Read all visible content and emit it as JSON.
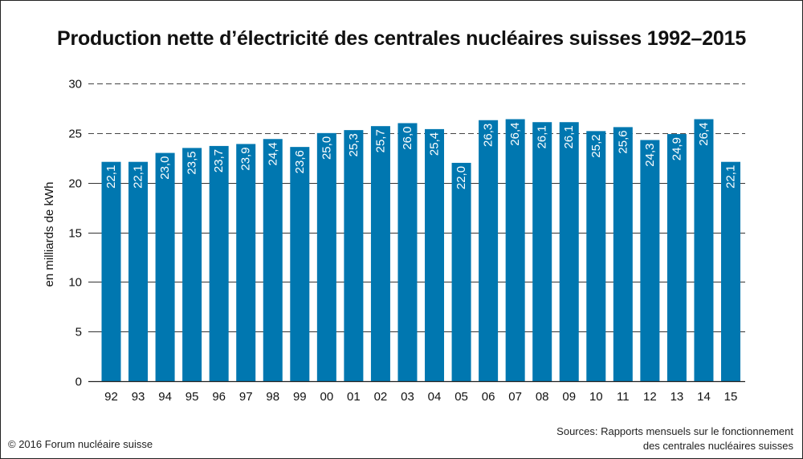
{
  "chart_data": {
    "type": "bar",
    "title": "Production nette d’électricité des centrales nucléaires suisses 1992–2015",
    "ylabel": "en milliards de kWh",
    "xlabel": "",
    "ylim": [
      0,
      30
    ],
    "yticks": [
      "0",
      "5",
      "10",
      "15",
      "20",
      "25",
      "30"
    ],
    "grid": "horizontal dashed at 25 and 30, solid at 5–20",
    "categories": [
      "92",
      "93",
      "94",
      "95",
      "96",
      "97",
      "98",
      "99",
      "00",
      "01",
      "02",
      "03",
      "04",
      "05",
      "06",
      "07",
      "08",
      "09",
      "10",
      "11",
      "12",
      "13",
      "14",
      "15"
    ],
    "values": [
      22.1,
      22.1,
      23.0,
      23.5,
      23.7,
      23.9,
      24.4,
      23.6,
      25.0,
      25.3,
      25.7,
      26.0,
      25.4,
      22.0,
      26.3,
      26.4,
      26.1,
      26.1,
      25.2,
      25.6,
      24.3,
      24.9,
      26.4,
      22.1
    ],
    "labels": [
      "22,1",
      "22,1",
      "23,0",
      "23,5",
      "23,7",
      "23,9",
      "24,4",
      "23,6",
      "25,0",
      "25,3",
      "25,7",
      "26,0",
      "25,4",
      "22,0",
      "26,3",
      "26,4",
      "26,1",
      "26,1",
      "25,2",
      "25,6",
      "24,3",
      "24,9",
      "26,4",
      "22,1"
    ],
    "bar_color": "#0077b0"
  },
  "footer": {
    "credit": "© 2016 Forum nucléaire suisse",
    "sources_line1": "Sources: Rapports mensuels sur le fonctionnement",
    "sources_line2": "des centrales nucléaires suisses"
  }
}
